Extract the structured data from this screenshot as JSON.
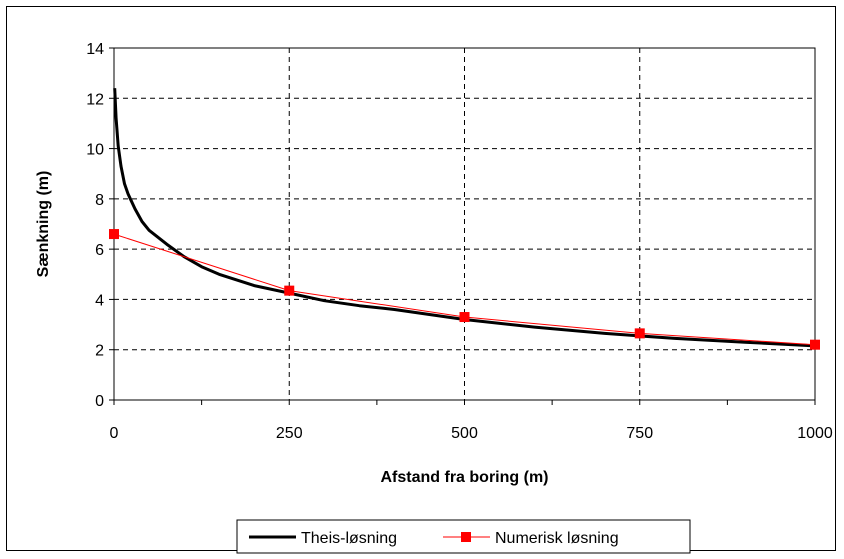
{
  "chart_data": {
    "type": "line",
    "xlabel": "Afstand fra boring (m)",
    "ylabel": "Sænkning (m)",
    "xlim": [
      0,
      1000
    ],
    "ylim": [
      0,
      14
    ],
    "x_ticks": [
      "0",
      "250",
      "500",
      "750",
      "1000"
    ],
    "y_ticks": [
      "0",
      "2",
      "4",
      "6",
      "8",
      "10",
      "12",
      "14"
    ],
    "grid": true,
    "legend_position": "bottom",
    "series": [
      {
        "name": "Theis-løsning",
        "color": "#000000",
        "marker": "none",
        "x": [
          1,
          3,
          6,
          10,
          15,
          20,
          30,
          40,
          50,
          75,
          100,
          125,
          150,
          200,
          250,
          300,
          350,
          400,
          500,
          600,
          700,
          800,
          900,
          1000
        ],
        "y": [
          12.4,
          11.2,
          10.1,
          9.3,
          8.6,
          8.2,
          7.6,
          7.1,
          6.75,
          6.2,
          5.7,
          5.3,
          5.0,
          4.55,
          4.25,
          3.95,
          3.75,
          3.6,
          3.2,
          2.9,
          2.65,
          2.45,
          2.3,
          2.15
        ]
      },
      {
        "name": "Numerisk løsning",
        "color": "#ff0000",
        "marker": "square",
        "x": [
          0,
          250,
          500,
          750,
          1000
        ],
        "y": [
          6.6,
          4.35,
          3.3,
          2.65,
          2.2
        ]
      }
    ]
  }
}
